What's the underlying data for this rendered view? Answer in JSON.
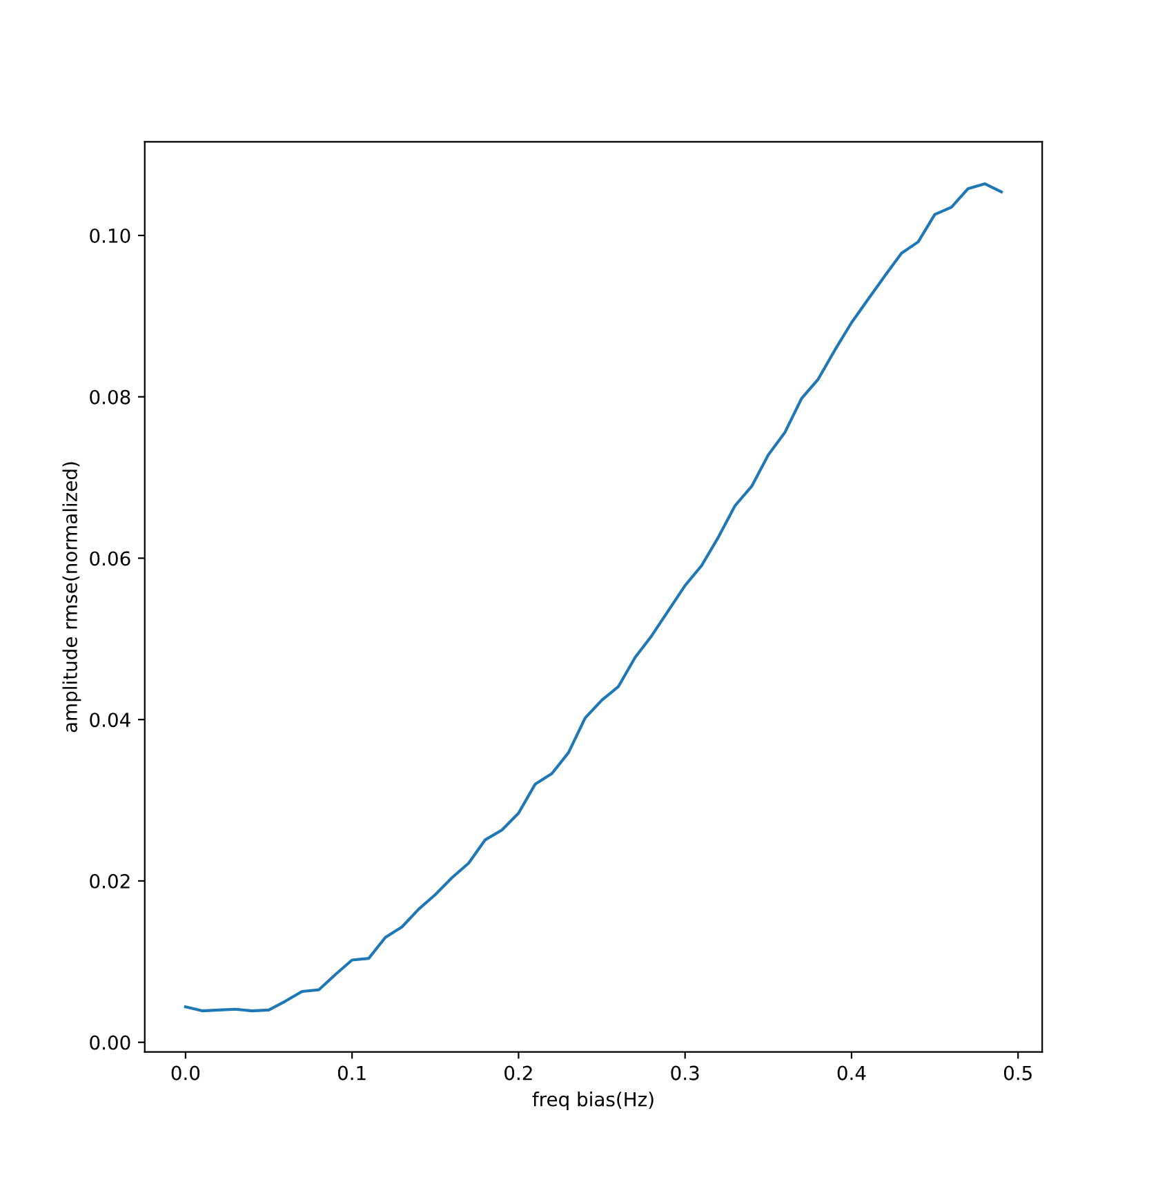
{
  "chart_data": {
    "type": "line",
    "xlabel": "freq bias(Hz)",
    "ylabel": "amplitude rmse(normalized)",
    "x": [
      0.0,
      0.01,
      0.02,
      0.03,
      0.04,
      0.05,
      0.06,
      0.07,
      0.08,
      0.09,
      0.1,
      0.11,
      0.12,
      0.13,
      0.14,
      0.15,
      0.16,
      0.17,
      0.18,
      0.19,
      0.2,
      0.21,
      0.22,
      0.23,
      0.24,
      0.25,
      0.26,
      0.27,
      0.28,
      0.29,
      0.3,
      0.31,
      0.32,
      0.33,
      0.34,
      0.35,
      0.36,
      0.37,
      0.38,
      0.39,
      0.4,
      0.41,
      0.42,
      0.43,
      0.44,
      0.45,
      0.46,
      0.47,
      0.48,
      0.49
    ],
    "series": [
      {
        "color": "#1f77b4",
        "values": [
          0.0044,
          0.0039,
          0.004,
          0.0041,
          0.0039,
          0.004,
          0.0051,
          0.0063,
          0.0065,
          0.0084,
          0.0102,
          0.0104,
          0.013,
          0.0143,
          0.0165,
          0.0183,
          0.0204,
          0.0222,
          0.0251,
          0.0263,
          0.0284,
          0.032,
          0.0333,
          0.0359,
          0.0402,
          0.0424,
          0.0441,
          0.0477,
          0.0504,
          0.0535,
          0.0566,
          0.0591,
          0.0626,
          0.0665,
          0.0689,
          0.0728,
          0.0756,
          0.0798,
          0.0822,
          0.0858,
          0.0892,
          0.0921,
          0.095,
          0.0978,
          0.0992,
          0.1026,
          0.1035,
          0.1058,
          0.1064,
          0.1054
        ]
      }
    ],
    "xlim": [
      -0.0245,
      0.5145
    ],
    "ylim": [
      -0.0012,
      0.1116
    ],
    "xticks": [
      {
        "value": 0.0,
        "label": "0.0"
      },
      0.1,
      0.2,
      0.3,
      0.4,
      0.5
    ],
    "yticks": [
      {
        "value": 0.0,
        "label": "0.00"
      },
      {
        "value": 0.02,
        "label": "0.02"
      },
      {
        "value": 0.04,
        "label": "0.04"
      },
      {
        "value": 0.06,
        "label": "0.06"
      },
      {
        "value": 0.08,
        "label": "0.08"
      },
      {
        "value": 0.1,
        "label": "0.10"
      }
    ],
    "grid": false,
    "line_style": "solid",
    "marker": "none"
  }
}
